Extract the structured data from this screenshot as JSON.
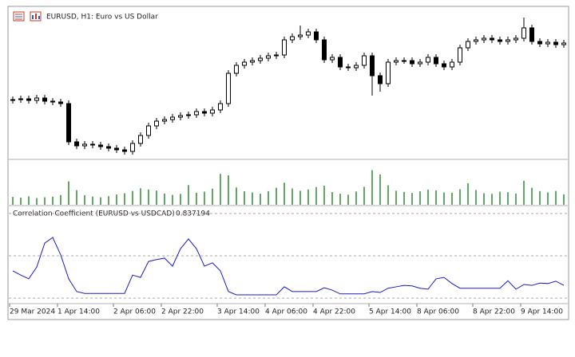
{
  "chart_data": [
    {
      "type": "candlestick",
      "title": "EURUSD, H1:  Euro vs US Dollar",
      "categories": [
        "29 Mar 2024",
        null,
        null,
        null,
        null,
        null,
        "1 Apr 14:00",
        null,
        null,
        null,
        null,
        null,
        null,
        "2 Apr 06:00",
        null,
        null,
        null,
        null,
        null,
        "2 Apr 22:00",
        null,
        null,
        null,
        null,
        null,
        null,
        "3 Apr 14:00",
        null,
        null,
        null,
        null,
        null,
        "4 Apr 06:00",
        null,
        null,
        null,
        null,
        null,
        "4 Apr 22:00",
        null,
        null,
        null,
        null,
        null,
        null,
        "5 Apr 14:00",
        null,
        null,
        null,
        null,
        null,
        "8 Apr 06:00",
        null,
        null,
        null,
        null,
        null,
        null,
        "8 Apr 22:00",
        null,
        null,
        null,
        null,
        null,
        "9 Apr 14:00",
        null,
        null,
        null,
        null,
        null
      ],
      "open": [
        1.0774,
        1.0775,
        1.0776,
        1.0774,
        1.0777,
        1.0773,
        1.0772,
        1.077,
        1.0722,
        1.0717,
        1.0719,
        1.0718,
        1.0716,
        1.0714,
        1.0712,
        1.071,
        1.072,
        1.073,
        1.0742,
        1.0748,
        1.075,
        1.0753,
        1.0755,
        1.0756,
        1.076,
        1.0758,
        1.0762,
        1.077,
        1.0808,
        1.0818,
        1.0822,
        1.0824,
        1.0827,
        1.083,
        1.0831,
        1.085,
        1.0854,
        1.0856,
        1.086,
        1.085,
        1.0825,
        1.0828,
        1.0816,
        1.0815,
        1.0818,
        1.083,
        1.0805,
        1.0795,
        1.0822,
        1.0824,
        1.0824,
        1.082,
        1.0822,
        1.0828,
        1.082,
        1.0816,
        1.0822,
        1.084,
        1.0848,
        1.085,
        1.0852,
        1.085,
        1.0848,
        1.085,
        1.0852,
        1.0865,
        1.0848,
        1.0845,
        1.0847,
        1.0844
      ],
      "high": [
        1.0779,
        1.078,
        1.078,
        1.0781,
        1.0781,
        1.0777,
        1.0776,
        1.0774,
        1.0726,
        1.0723,
        1.0723,
        1.0722,
        1.072,
        1.0718,
        1.0716,
        1.0724,
        1.0734,
        1.0746,
        1.0752,
        1.0754,
        1.0757,
        1.0759,
        1.076,
        1.0764,
        1.0764,
        1.0766,
        1.0774,
        1.0812,
        1.0822,
        1.0826,
        1.0828,
        1.0831,
        1.0834,
        1.0835,
        1.0854,
        1.0858,
        1.0868,
        1.0864,
        1.0864,
        1.0854,
        1.0832,
        1.0832,
        1.082,
        1.0822,
        1.0834,
        1.0834,
        1.0809,
        1.0826,
        1.0828,
        1.0828,
        1.0828,
        1.0826,
        1.0832,
        1.0832,
        1.0824,
        1.0826,
        1.0844,
        1.0852,
        1.0854,
        1.0856,
        1.0856,
        1.0854,
        1.0854,
        1.0856,
        1.0878,
        1.0869,
        1.0852,
        1.0851,
        1.0851,
        1.085
      ],
      "low": [
        1.077,
        1.0771,
        1.077,
        1.077,
        1.0769,
        1.0768,
        1.0766,
        1.0718,
        1.0713,
        1.0713,
        1.0714,
        1.0712,
        1.071,
        1.0708,
        1.0706,
        1.0706,
        1.0716,
        1.0726,
        1.0738,
        1.0744,
        1.0746,
        1.0749,
        1.0751,
        1.0752,
        1.0754,
        1.0754,
        1.0758,
        1.0766,
        1.0804,
        1.0814,
        1.0818,
        1.082,
        1.0823,
        1.0826,
        1.0827,
        1.0846,
        1.085,
        1.0852,
        1.0846,
        1.0821,
        1.0821,
        1.0812,
        1.0811,
        1.0811,
        1.0814,
        1.078,
        1.0785,
        1.0791,
        1.0818,
        1.082,
        1.0816,
        1.0816,
        1.0818,
        1.0816,
        1.0812,
        1.0812,
        1.0818,
        1.0836,
        1.0844,
        1.0846,
        1.0846,
        1.0844,
        1.0844,
        1.0846,
        1.0848,
        1.0844,
        1.0841,
        1.0841,
        1.084,
        1.084
      ],
      "close": [
        1.0775,
        1.0776,
        1.0774,
        1.0777,
        1.0773,
        1.0772,
        1.077,
        1.0722,
        1.0717,
        1.0719,
        1.0718,
        1.0716,
        1.0714,
        1.0712,
        1.071,
        1.072,
        1.073,
        1.0742,
        1.0748,
        1.075,
        1.0753,
        1.0755,
        1.0756,
        1.076,
        1.0758,
        1.0762,
        1.077,
        1.0808,
        1.0818,
        1.0822,
        1.0824,
        1.0827,
        1.083,
        1.0831,
        1.085,
        1.0854,
        1.0856,
        1.086,
        1.085,
        1.0825,
        1.0828,
        1.0816,
        1.0815,
        1.0818,
        1.083,
        1.0805,
        1.0795,
        1.0822,
        1.0824,
        1.0824,
        1.082,
        1.0822,
        1.0828,
        1.082,
        1.0816,
        1.0822,
        1.084,
        1.0848,
        1.085,
        1.0852,
        1.085,
        1.0848,
        1.085,
        1.0852,
        1.0865,
        1.0848,
        1.0845,
        1.0847,
        1.0844,
        1.0846
      ],
      "color": "#000000",
      "ylim": [
        1.0702,
        1.0888
      ]
    },
    {
      "type": "bar",
      "values": [
        4200,
        3800,
        4500,
        3600,
        4000,
        4300,
        5200,
        12500,
        7800,
        5100,
        4400,
        4000,
        4600,
        5500,
        6200,
        7400,
        8800,
        8200,
        7600,
        6000,
        5300,
        5800,
        10500,
        6400,
        7000,
        8600,
        16500,
        15800,
        9200,
        7200,
        6600,
        5900,
        7300,
        9100,
        11800,
        8700,
        7500,
        8200,
        9500,
        10200,
        6800,
        5900,
        5400,
        7100,
        9600,
        18500,
        16200,
        10400,
        7500,
        6900,
        6300,
        7200,
        8100,
        7700,
        6600,
        6400,
        8300,
        11500,
        7900,
        6200,
        5800,
        7000,
        6700,
        6000,
        12800,
        9100,
        7300,
        6600,
        7400,
        5600
      ],
      "color": "#2e8b2e",
      "ylim": [
        0,
        20000
      ]
    },
    {
      "type": "line",
      "title": "Correlation Coefficient (EURUSD vs USDCAD)",
      "values": [
        0.868,
        0.859,
        0.851,
        0.876,
        0.927,
        0.939,
        0.902,
        0.851,
        0.824,
        0.82,
        0.82,
        0.82,
        0.82,
        0.82,
        0.82,
        0.859,
        0.854,
        0.888,
        0.892,
        0.895,
        0.878,
        0.915,
        0.936,
        0.915,
        0.878,
        0.885,
        0.868,
        0.824,
        0.817,
        0.817,
        0.817,
        0.817,
        0.817,
        0.817,
        0.834,
        0.824,
        0.824,
        0.824,
        0.824,
        0.832,
        0.827,
        0.819,
        0.819,
        0.819,
        0.819,
        0.824,
        0.822,
        0.831,
        0.834,
        0.837,
        0.836,
        0.831,
        0.829,
        0.851,
        0.854,
        0.841,
        0.831,
        0.831,
        0.831,
        0.831,
        0.831,
        0.831,
        0.847,
        0.829,
        0.839,
        0.837,
        0.842,
        0.841,
        0.846,
        0.837194
      ],
      "color": "#1a1acc",
      "ylim": [
        0.8,
        1.0
      ],
      "levels": [
        0.99,
        0.9,
        0.81
      ]
    }
  ]
}
